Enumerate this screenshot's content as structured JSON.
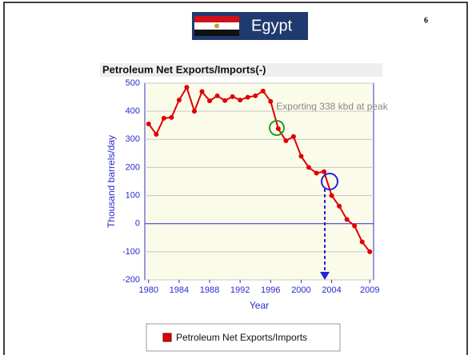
{
  "header": {
    "title": "Egypt",
    "page_number": "6"
  },
  "chart_data": {
    "type": "line",
    "title": "Petroleum Net Exports/Imports(-)",
    "x_label": "Year",
    "y_label": "Thousand barrels/day",
    "annotation": "Exporting 338 kbd at peak",
    "x": [
      1980,
      1981,
      1982,
      1983,
      1984,
      1985,
      1986,
      1987,
      1988,
      1989,
      1990,
      1991,
      1992,
      1993,
      1994,
      1995,
      1996,
      1997,
      1998,
      1999,
      2000,
      2001,
      2002,
      2003,
      2004,
      2005,
      2006,
      2007,
      2008,
      2009
    ],
    "series": [
      {
        "name": "Petroleum Net Exports/Imports",
        "color": "#e00000",
        "values": [
          355,
          318,
          375,
          378,
          440,
          485,
          400,
          470,
          437,
          455,
          438,
          452,
          440,
          450,
          455,
          472,
          435,
          338,
          295,
          310,
          240,
          200,
          180,
          185,
          100,
          62,
          15,
          -8,
          -65,
          -100
        ]
      }
    ],
    "xlim": [
      1979.5,
      2009.5
    ],
    "xticks": [
      1980,
      1984,
      1988,
      1992,
      1996,
      2000,
      2004,
      2009
    ],
    "ylim": [
      -200,
      500
    ],
    "yticks": [
      -200,
      -100,
      0,
      100,
      200,
      300,
      400,
      500
    ],
    "grid": true
  }
}
